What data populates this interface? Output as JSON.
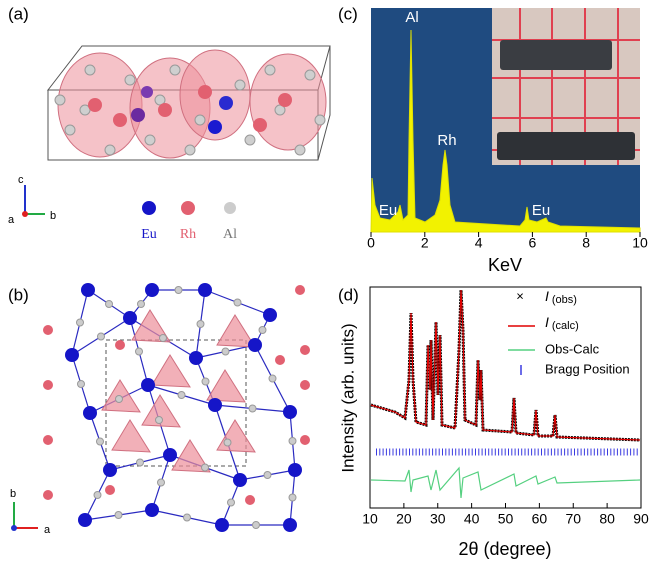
{
  "panels": {
    "a": {
      "label": "(a)",
      "axes": [
        "c",
        "a",
        "b"
      ],
      "legend": [
        "Eu",
        "Rh",
        "Al"
      ]
    },
    "b": {
      "label": "(b)",
      "axes": [
        "b",
        "a"
      ]
    },
    "c": {
      "label": "(c)",
      "xlabel": "KeV",
      "xlim": [
        0,
        10
      ],
      "xticks": [
        0,
        2,
        4,
        6,
        8,
        10
      ],
      "peak_labels": [
        "Al",
        "Rh",
        "Eu",
        "Eu"
      ]
    },
    "d": {
      "label": "(d)",
      "xlabel": "2θ (degree)",
      "ylabel": "Intensity (arb. units)",
      "xlim": [
        10,
        90
      ],
      "xticks": [
        10,
        20,
        30,
        40,
        50,
        60,
        70,
        80,
        90
      ],
      "legend": [
        {
          "symbol": "I",
          "sub": "(obs)"
        },
        {
          "symbol": "I",
          "sub": "(calc)"
        },
        {
          "text": "Obs-Calc"
        },
        {
          "text": "Bragg Position"
        }
      ]
    }
  }
}
